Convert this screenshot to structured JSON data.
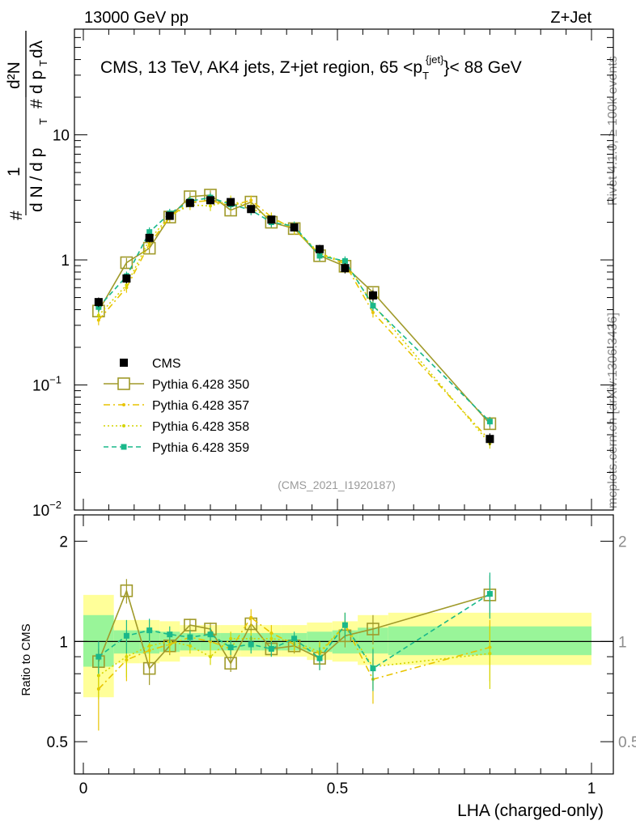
{
  "header": {
    "left": "13000 GeV pp",
    "right": "Z+Jet",
    "side_top": "Rivet 4.1.0, ≥ 100k events",
    "side_bottom": "mcplots.cern.ch [arXiv:1306.3436]"
  },
  "chart_data": {
    "type": "line",
    "title": "CMS, 13 TeV, AK4 jets, Z+jet region, 65 < p_T^{jet} < 88 GeV",
    "title_parts": {
      "prefix": "CMS, 13 TeV, AK4 jets, Z+jet region, 65 <",
      "p": "p",
      "sub": "T",
      "sup": "{jet}",
      "suffix": "}< 88 GeV"
    },
    "analysis_tag": "(CMS_2021_I1920187)",
    "xlabel": "LHA (charged-only)",
    "ylabel": "1/dN/dp_T  d²N/dp_T dλ",
    "ylabel_parts": {
      "hash": "#",
      "one": "1",
      "dN": "d N / d p",
      "dp": "d p",
      "d2N": "d²N",
      "dlam": "dλ",
      "T": "T"
    },
    "ratio_ylabel": "Ratio to CMS",
    "xlim": [
      0,
      1
    ],
    "ylim": [
      0.01,
      70
    ],
    "yscale": "log",
    "ratio_ylim": [
      0.4,
      2.4
    ],
    "x_ticks": [
      {
        "value": 0,
        "label": "0"
      },
      {
        "value": 0.5,
        "label": "0.5"
      },
      {
        "value": 1,
        "label": "1"
      }
    ],
    "y_ticks": [
      {
        "value": 10,
        "label": "10",
        "sup": ""
      },
      {
        "value": 1,
        "label": "1",
        "sup": ""
      },
      {
        "value": 0.1,
        "label": "10",
        "sup": "−1"
      },
      {
        "value": 0.01,
        "label": "10",
        "sup": "−2"
      }
    ],
    "ratio_ticks": [
      {
        "value": 2,
        "label": "2"
      },
      {
        "value": 1,
        "label": "1"
      },
      {
        "value": 0.5,
        "label": "0.5"
      }
    ],
    "legend_position": "center-left",
    "bins": [
      0.0,
      0.06,
      0.11,
      0.15,
      0.19,
      0.23,
      0.27,
      0.31,
      0.35,
      0.39,
      0.44,
      0.49,
      0.54,
      0.6,
      1.0
    ],
    "x": [
      0.03,
      0.085,
      0.13,
      0.17,
      0.21,
      0.25,
      0.29,
      0.33,
      0.37,
      0.415,
      0.465,
      0.515,
      0.57,
      0.8
    ],
    "cms": {
      "name": "CMS",
      "values": [
        0.46,
        0.71,
        1.5,
        2.25,
        2.85,
        3.0,
        2.9,
        2.55,
        2.1,
        1.82,
        1.22,
        0.86,
        0.52,
        0.037
      ],
      "errors": [
        0.04,
        0.06,
        0.12,
        0.15,
        0.18,
        0.2,
        0.2,
        0.18,
        0.15,
        0.13,
        0.1,
        0.08,
        0.05,
        0.004
      ],
      "ratio_band_inner": [
        [
          0.84,
          1.2
        ],
        [
          0.92,
          1.08
        ],
        [
          0.92,
          1.08
        ],
        [
          0.93,
          1.07
        ],
        [
          0.94,
          1.06
        ],
        [
          0.94,
          1.06
        ],
        [
          0.94,
          1.06
        ],
        [
          0.94,
          1.06
        ],
        [
          0.94,
          1.06
        ],
        [
          0.94,
          1.06
        ],
        [
          0.93,
          1.07
        ],
        [
          0.92,
          1.08
        ],
        [
          0.92,
          1.1
        ],
        [
          0.91,
          1.11
        ]
      ],
      "ratio_band_outer": [
        [
          0.68,
          1.38
        ],
        [
          0.86,
          1.16
        ],
        [
          0.86,
          1.16
        ],
        [
          0.87,
          1.15
        ],
        [
          0.9,
          1.12
        ],
        [
          0.9,
          1.12
        ],
        [
          0.9,
          1.12
        ],
        [
          0.9,
          1.12
        ],
        [
          0.9,
          1.12
        ],
        [
          0.9,
          1.12
        ],
        [
          0.88,
          1.14
        ],
        [
          0.87,
          1.15
        ],
        [
          0.85,
          1.2
        ],
        [
          0.85,
          1.22
        ]
      ]
    },
    "series": [
      {
        "name": "Pythia 6.428 350",
        "color": "#a09a2a",
        "style": "solid",
        "marker": "open-square",
        "values": [
          0.39,
          0.95,
          1.24,
          2.2,
          3.2,
          3.3,
          2.5,
          2.9,
          2.0,
          1.78,
          1.08,
          0.89,
          0.55,
          0.049
        ],
        "ratio": [
          0.87,
          1.42,
          0.83,
          0.97,
          1.12,
          1.09,
          0.86,
          1.13,
          0.95,
          0.97,
          0.89,
          1.04,
          1.09,
          1.38
        ],
        "ratio_err": [
          0.08,
          0.12,
          0.09,
          0.06,
          0.05,
          0.05,
          0.05,
          0.06,
          0.05,
          0.05,
          0.07,
          0.08,
          0.11,
          0.2
        ]
      },
      {
        "name": "Pythia 6.428 357",
        "color": "#e8c400",
        "style": "dashdot",
        "marker": "dot",
        "values": [
          0.33,
          0.6,
          1.34,
          2.2,
          2.9,
          2.98,
          2.7,
          3.0,
          2.2,
          1.75,
          1.12,
          0.93,
          0.38,
          0.036
        ],
        "ratio": [
          0.72,
          0.88,
          0.94,
          0.98,
          1.03,
          1.0,
          0.95,
          1.18,
          1.06,
          0.98,
          0.92,
          1.12,
          0.77,
          0.96
        ],
        "ratio_err": [
          0.18,
          0.12,
          0.08,
          0.06,
          0.05,
          0.05,
          0.05,
          0.07,
          0.06,
          0.05,
          0.07,
          0.1,
          0.12,
          0.2
        ]
      },
      {
        "name": "Pythia 6.428 358",
        "color": "#d4d400",
        "style": "dotted",
        "marker": "dot",
        "values": [
          0.36,
          0.63,
          1.45,
          2.25,
          2.75,
          2.7,
          3.0,
          2.6,
          2.15,
          1.8,
          1.13,
          0.96,
          0.44,
          0.034
        ],
        "ratio": [
          0.79,
          0.9,
          0.97,
          1.0,
          0.97,
          0.9,
          1.02,
          1.02,
          1.02,
          1.0,
          0.93,
          1.12,
          0.84,
          0.92
        ],
        "ratio_err": [
          0.12,
          0.12,
          0.08,
          0.06,
          0.05,
          0.05,
          0.05,
          0.06,
          0.05,
          0.05,
          0.07,
          0.1,
          0.12,
          0.2
        ]
      },
      {
        "name": "Pythia 6.428 359",
        "color": "#1ab88a",
        "style": "dashed",
        "marker": "filled-square",
        "values": [
          0.42,
          0.74,
          1.67,
          2.35,
          2.95,
          3.15,
          2.78,
          2.5,
          2.0,
          1.86,
          1.08,
          0.98,
          0.43,
          0.051
        ],
        "ratio": [
          0.9,
          1.04,
          1.08,
          1.05,
          1.03,
          1.05,
          0.96,
          0.98,
          0.95,
          1.02,
          0.89,
          1.12,
          0.83,
          1.39
        ],
        "ratio_err": [
          0.1,
          0.12,
          0.09,
          0.06,
          0.05,
          0.05,
          0.05,
          0.06,
          0.05,
          0.05,
          0.07,
          0.1,
          0.12,
          0.22
        ]
      }
    ]
  }
}
